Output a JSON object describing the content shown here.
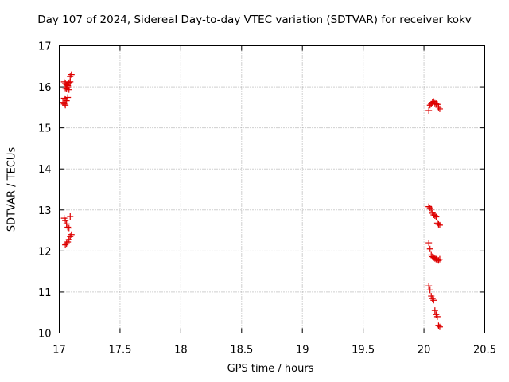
{
  "chart_data": {
    "type": "scatter",
    "title": "Day 107 of 2024, Sidereal Day-to-day VTEC variation (SDTVAR) for receiver kokv",
    "xlabel": "GPS time / hours",
    "ylabel": "SDTVAR / TECUs",
    "xlim": [
      17,
      20.5
    ],
    "ylim": [
      10,
      17
    ],
    "xticks": [
      17,
      17.5,
      18,
      18.5,
      19,
      19.5,
      20,
      20.5
    ],
    "yticks": [
      10,
      11,
      12,
      13,
      14,
      15,
      16,
      17
    ],
    "xtick_labels": [
      "17",
      "17.5",
      "18",
      "18.5",
      "19",
      "19.5",
      "20",
      "20.5"
    ],
    "ytick_labels": [
      "10",
      "11",
      "12",
      "13",
      "14",
      "15",
      "16",
      "17"
    ],
    "grid": true,
    "marker": "+",
    "color": "#dd0000",
    "series": [
      {
        "name": "SDTVAR",
        "x": [
          17.04,
          17.05,
          17.06,
          17.07,
          17.08,
          17.09,
          17.05,
          17.06,
          17.07,
          17.08,
          17.09,
          17.1,
          17.04,
          17.05,
          17.06,
          17.07,
          17.03,
          17.04,
          17.05,
          17.05,
          17.06,
          17.07,
          17.08,
          17.09,
          17.1,
          17.04,
          17.05,
          17.06,
          17.07,
          17.08,
          17.09,
          20.04,
          20.05,
          20.06,
          20.07,
          20.08,
          20.09,
          20.1,
          20.11,
          20.12,
          20.13,
          20.04,
          20.05,
          20.06,
          20.07,
          20.08,
          20.09,
          20.1,
          20.11,
          20.12,
          20.13,
          20.04,
          20.05,
          20.06,
          20.07,
          20.08,
          20.09,
          20.1,
          20.11,
          20.12,
          20.13,
          20.04,
          20.05,
          20.06,
          20.07,
          20.08,
          20.09,
          20.1,
          20.11,
          20.12,
          20.13
        ],
        "y": [
          16.12,
          16.08,
          16.05,
          16.03,
          16.1,
          16.12,
          15.97,
          15.95,
          16.0,
          15.93,
          16.25,
          16.3,
          15.72,
          15.7,
          15.66,
          15.74,
          15.62,
          15.58,
          15.55,
          12.15,
          12.18,
          12.22,
          12.28,
          12.35,
          12.4,
          12.8,
          12.74,
          12.66,
          12.58,
          12.56,
          12.84,
          15.42,
          15.55,
          15.58,
          15.62,
          15.64,
          15.6,
          15.59,
          15.57,
          15.5,
          15.46,
          13.08,
          13.05,
          13.02,
          12.92,
          12.88,
          12.86,
          12.83,
          12.68,
          12.65,
          12.63,
          12.2,
          12.05,
          11.9,
          11.86,
          11.84,
          11.82,
          11.8,
          11.78,
          11.77,
          11.8,
          11.15,
          11.05,
          10.9,
          10.84,
          10.8,
          10.55,
          10.45,
          10.4,
          10.18,
          10.15
        ]
      }
    ]
  }
}
